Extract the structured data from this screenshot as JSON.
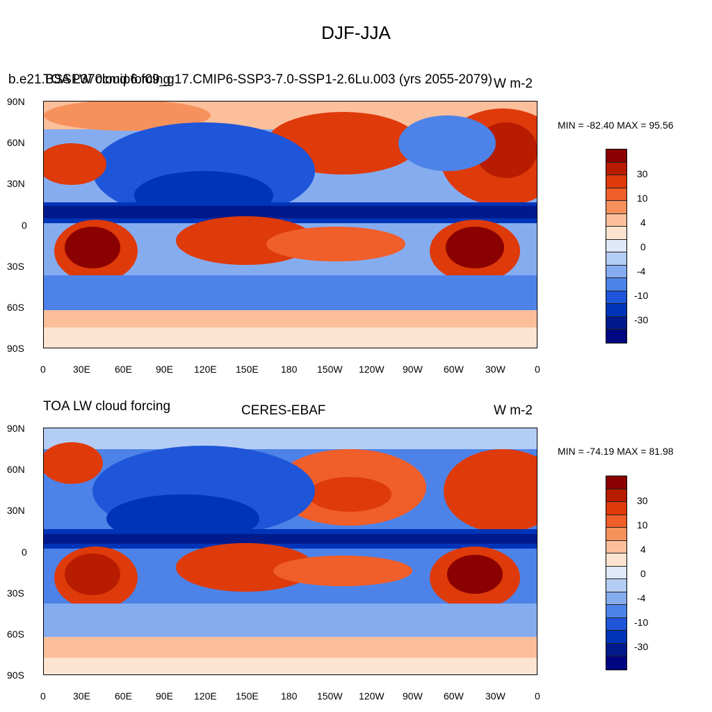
{
  "main_title": "DJF-JJA",
  "top_panel": {
    "left_title": "b.e21.BSSP370cmip6.f09_g17.CMIP6-SSP3-7.0-SSP1-2.6Lu.003 (yrs 2055-2079)",
    "left_title_overlap": "TOA LW cloud forcing",
    "units": "W m-2",
    "min_max": "MIN = -82.40 MAX =  95.56"
  },
  "bottom_panel": {
    "left_title": "TOA LW cloud forcing",
    "center_title": "CERES-EBAF",
    "units": "W m-2",
    "min_max": "MIN = -74.19 MAX =  81.98"
  },
  "lat_ticks": [
    "90N",
    "60N",
    "30N",
    "0",
    "30S",
    "60S",
    "90S"
  ],
  "lon_ticks": [
    "0",
    "30E",
    "60E",
    "90E",
    "120E",
    "150E",
    "180",
    "150W",
    "120W",
    "90W",
    "60W",
    "30W",
    "0"
  ],
  "colorbar": {
    "labels": [
      "30",
      "10",
      "4",
      "0",
      "-4",
      "-10",
      "-30"
    ],
    "colors": [
      "#8b0000",
      "#b81c00",
      "#de3a0a",
      "#f05e2a",
      "#f7915c",
      "#fbbf9b",
      "#fde4d0",
      "#dfe9f9",
      "#b4cdf5",
      "#86acf0",
      "#4d83e8",
      "#1f55d8",
      "#0034b8",
      "#001a8c",
      "#000580"
    ]
  }
}
